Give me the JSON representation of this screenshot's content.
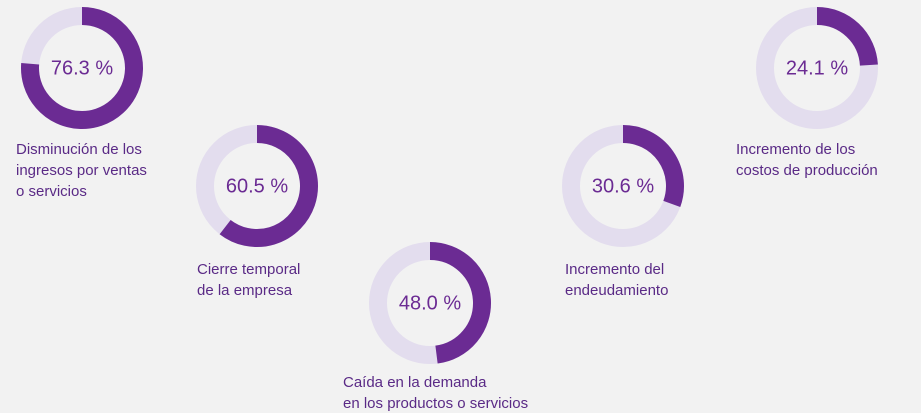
{
  "chart_data": [
    {
      "type": "donut",
      "values": [
        76.3
      ],
      "value_labels": [
        "76.3 %"
      ],
      "color": "#6b2b93",
      "track_color": "#e3ddee",
      "label": [
        "Disminución de los",
        "ingresos por ventas",
        "o servicios"
      ]
    },
    {
      "type": "donut",
      "values": [
        60.5
      ],
      "value_labels": [
        "60.5 %"
      ],
      "color": "#6b2b93",
      "track_color": "#e3ddee",
      "label": [
        "Cierre temporal",
        "de la empresa"
      ]
    },
    {
      "type": "donut",
      "values": [
        48.0
      ],
      "value_labels": [
        "48.0 %"
      ],
      "color": "#6b2b93",
      "track_color": "#e3ddee",
      "label": [
        "Caída en la demanda",
        "en los productos o servicios"
      ]
    },
    {
      "type": "donut",
      "values": [
        30.6
      ],
      "value_labels": [
        "30.6 %"
      ],
      "color": "#6b2b93",
      "track_color": "#e3ddee",
      "label": [
        "Incremento del",
        "endeudamiento"
      ]
    },
    {
      "type": "donut",
      "values": [
        24.1
      ],
      "value_labels": [
        "24.1 %"
      ],
      "color": "#6b2b93",
      "track_color": "#e3ddee",
      "label": [
        "Incremento de los",
        "costos de producción"
      ]
    }
  ]
}
